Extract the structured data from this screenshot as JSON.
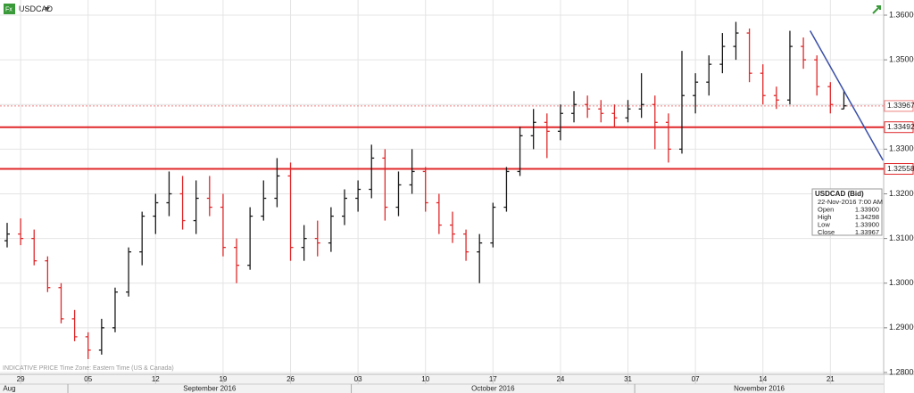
{
  "chart_data": {
    "type": "ohlc",
    "symbol": "USDCAD",
    "footer": "INDICATIVE PRICE   Time Zone: Eastern Time (US & Canada)",
    "categories": [
      null,
      "29",
      null,
      null,
      null,
      null,
      "05",
      null,
      null,
      null,
      null,
      "12",
      null,
      null,
      null,
      null,
      "19",
      null,
      null,
      null,
      null,
      "26",
      null,
      null,
      null,
      null,
      "03",
      null,
      null,
      null,
      null,
      "10",
      null,
      null,
      null,
      null,
      "17",
      null,
      null,
      null,
      null,
      "24",
      null,
      null,
      null,
      null,
      "31",
      null,
      null,
      null,
      null,
      "07",
      null,
      null,
      null,
      null,
      "14",
      null,
      null,
      null,
      null,
      "21",
      null
    ],
    "months": [
      {
        "label": "Aug",
        "start": 0
      },
      {
        "label": "September 2016",
        "start": 5
      },
      {
        "label": "October 2016",
        "start": 26
      },
      {
        "label": "November 2016",
        "start": 47
      }
    ],
    "open": [
      1.3095,
      1.311,
      1.31,
      1.305,
      1.299,
      1.292,
      1.288,
      1.285,
      1.29,
      1.298,
      1.307,
      1.315,
      1.318,
      1.32,
      1.314,
      1.319,
      1.317,
      1.308,
      1.304,
      1.315,
      1.319,
      1.324,
      1.308,
      1.31,
      1.309,
      1.315,
      1.319,
      1.321,
      1.328,
      1.317,
      1.322,
      1.325,
      1.318,
      1.313,
      1.311,
      1.307,
      1.309,
      1.317,
      1.325,
      1.333,
      1.336,
      1.334,
      1.338,
      1.34,
      1.339,
      1.338,
      1.337,
      1.339,
      1.34,
      1.336,
      1.33,
      1.342,
      1.345,
      1.349,
      1.353,
      1.356,
      1.347,
      1.342,
      1.341,
      1.353,
      1.35,
      1.344,
      1.339
    ],
    "high": [
      1.3135,
      1.3145,
      1.312,
      1.306,
      1.3,
      1.294,
      1.289,
      1.292,
      1.299,
      1.308,
      1.316,
      1.32,
      1.325,
      1.324,
      1.323,
      1.324,
      1.32,
      1.31,
      1.317,
      1.323,
      1.328,
      1.327,
      1.313,
      1.314,
      1.317,
      1.321,
      1.323,
      1.331,
      1.33,
      1.325,
      1.33,
      1.326,
      1.32,
      1.316,
      1.312,
      1.311,
      1.318,
      1.326,
      1.335,
      1.339,
      1.338,
      1.34,
      1.343,
      1.342,
      1.341,
      1.34,
      1.341,
      1.347,
      1.342,
      1.338,
      1.352,
      1.347,
      1.351,
      1.356,
      1.3585,
      1.357,
      1.349,
      1.344,
      1.3565,
      1.355,
      1.351,
      1.345,
      1.343
    ],
    "low": [
      1.308,
      1.3085,
      1.304,
      1.298,
      1.291,
      1.287,
      1.283,
      1.284,
      1.289,
      1.297,
      1.304,
      1.311,
      1.315,
      1.312,
      1.311,
      1.315,
      1.306,
      1.3,
      1.303,
      1.314,
      1.317,
      1.305,
      1.305,
      1.306,
      1.307,
      1.313,
      1.316,
      1.319,
      1.314,
      1.315,
      1.32,
      1.316,
      1.311,
      1.309,
      1.305,
      1.3,
      1.308,
      1.316,
      1.324,
      1.33,
      1.328,
      1.332,
      1.336,
      1.337,
      1.336,
      1.335,
      1.336,
      1.337,
      1.33,
      1.327,
      1.329,
      1.338,
      1.342,
      1.347,
      1.35,
      1.345,
      1.34,
      1.339,
      1.34,
      1.348,
      1.342,
      1.338,
      1.339
    ],
    "close": [
      1.311,
      1.31,
      1.305,
      1.299,
      1.292,
      1.288,
      1.285,
      1.29,
      1.298,
      1.307,
      1.315,
      1.318,
      1.32,
      1.314,
      1.319,
      1.317,
      1.308,
      1.304,
      1.315,
      1.319,
      1.324,
      1.308,
      1.31,
      1.309,
      1.315,
      1.319,
      1.321,
      1.328,
      1.317,
      1.322,
      1.325,
      1.318,
      1.313,
      1.311,
      1.307,
      1.309,
      1.317,
      1.325,
      1.333,
      1.336,
      1.334,
      1.338,
      1.34,
      1.339,
      1.338,
      1.337,
      1.339,
      1.34,
      1.336,
      1.33,
      1.342,
      1.345,
      1.349,
      1.353,
      1.356,
      1.347,
      1.342,
      1.341,
      1.353,
      1.35,
      1.344,
      1.34,
      1.3397
    ],
    "up_color": "#1a1a1a",
    "down_color": "#e0282a",
    "ylim": [
      1.278,
      1.361
    ],
    "yticks": [
      {
        "value": 1.28,
        "label": "1.28000"
      },
      {
        "value": 1.29,
        "label": "1.29000"
      },
      {
        "value": 1.3,
        "label": "1.30000"
      },
      {
        "value": 1.31,
        "label": "1.31000"
      },
      {
        "value": 1.32,
        "label": "1.32000"
      },
      {
        "value": 1.33,
        "label": "1.33000"
      },
      {
        "value": 1.34,
        "label": "1.34000"
      },
      {
        "value": 1.35,
        "label": "1.35000"
      },
      {
        "value": 1.36,
        "label": "1.36000"
      }
    ],
    "grid": true,
    "levels": [
      {
        "value": 1.33967,
        "style": "dotted",
        "color": "#f08080"
      },
      {
        "value": 1.33492,
        "style": "solid",
        "color": "#e0282a"
      },
      {
        "value": 1.32558,
        "style": "solid",
        "color": "#e0282a"
      }
    ],
    "trendline": {
      "x": [
        59.5,
        64.9
      ],
      "y": [
        1.3565,
        1.3275
      ],
      "color": "#3a4fa8"
    },
    "infobox": {
      "title": "USDCAD (Bid)",
      "time": "22-Nov-2016 7:00 AM",
      "rows": [
        [
          "Open",
          "1.33900"
        ],
        [
          "High",
          "1.34298"
        ],
        [
          "Low",
          "1.33900"
        ],
        [
          "Close",
          "1.33967"
        ]
      ]
    }
  }
}
